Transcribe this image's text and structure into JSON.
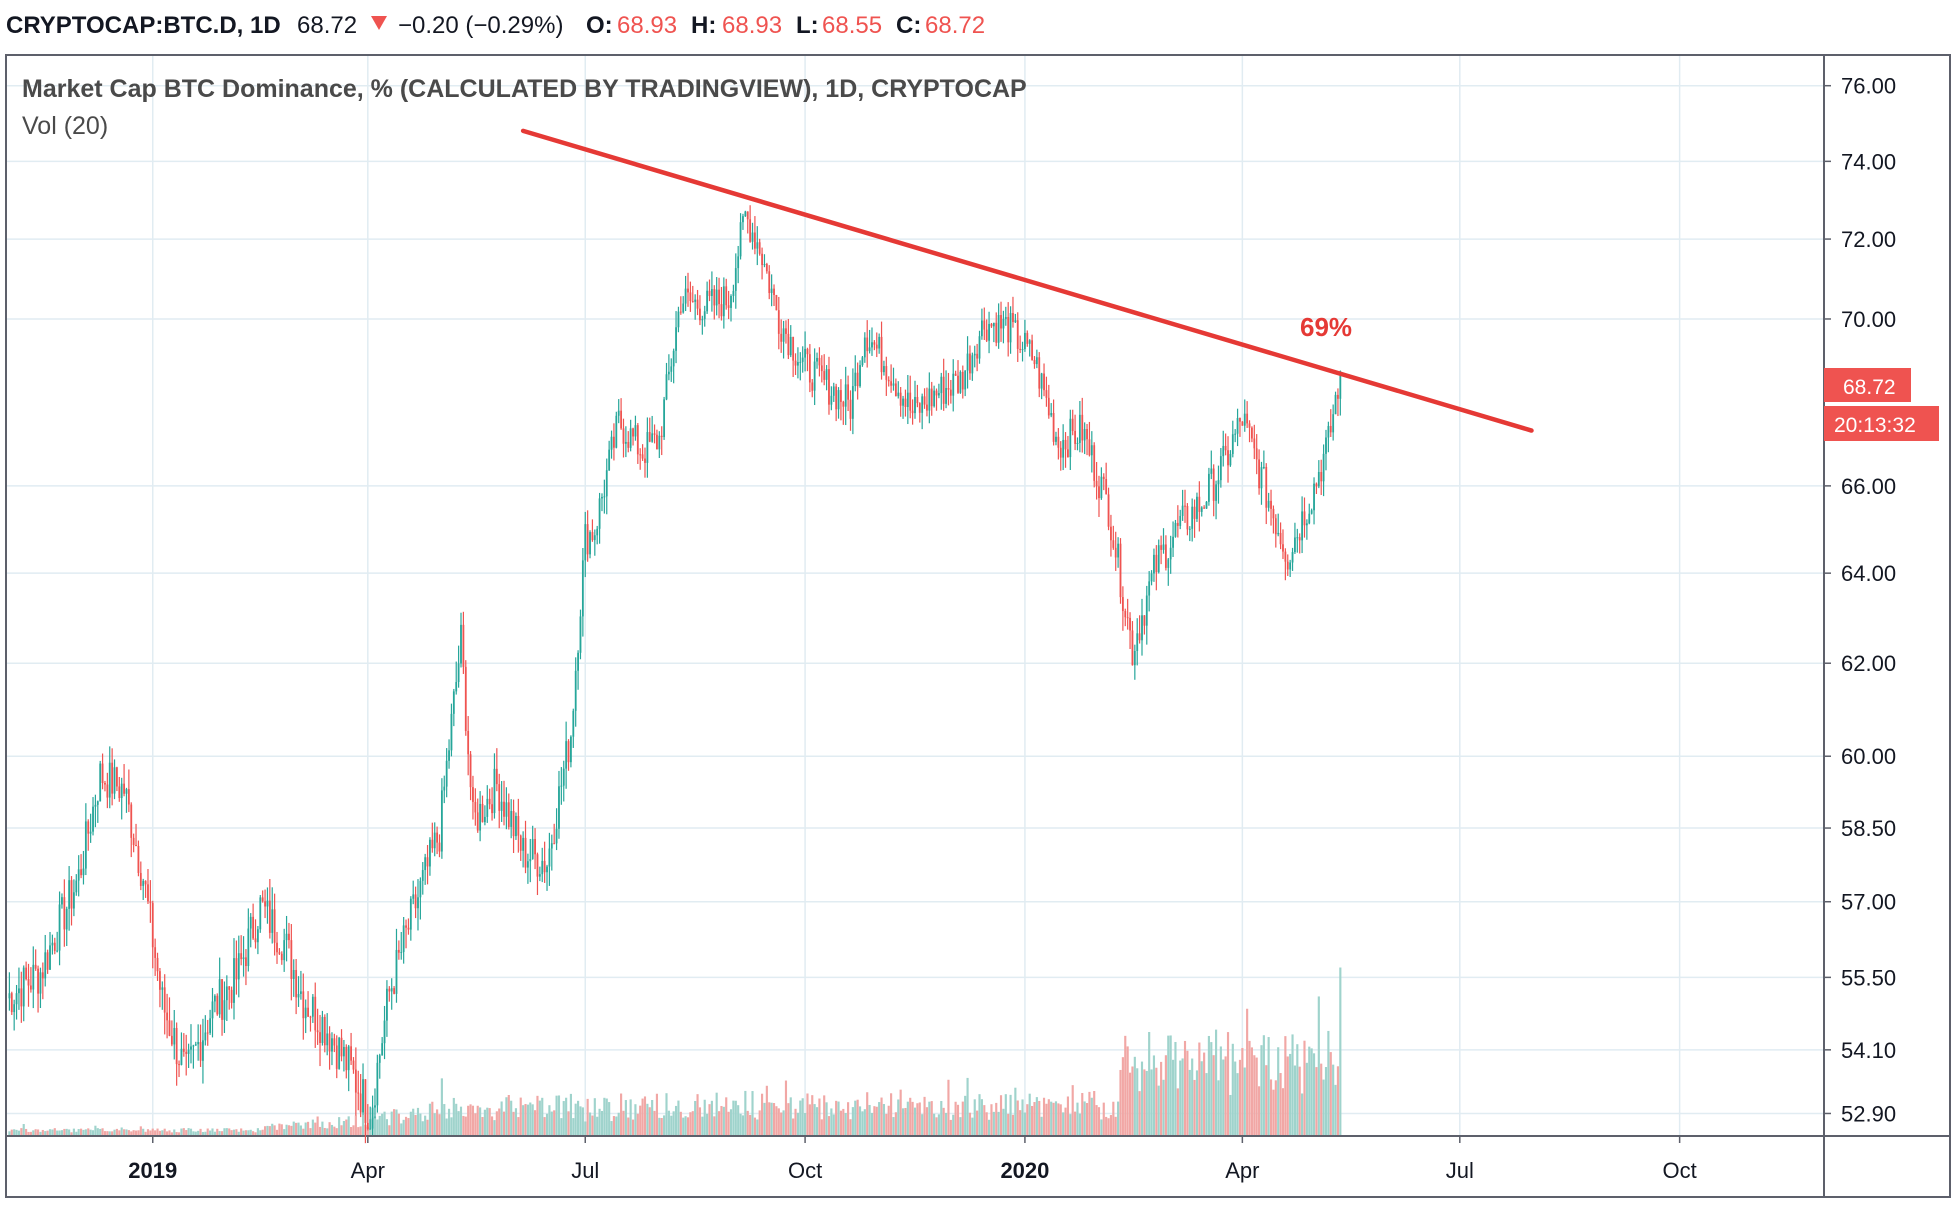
{
  "header": {
    "symbol": "CRYPTOCAP:BTC.D, 1D",
    "last": "68.72",
    "change": "−0.20 (−0.29%)",
    "o_label": "O:",
    "o_value": "68.93",
    "h_label": "H:",
    "h_value": "68.93",
    "l_label": "L:",
    "l_value": "68.55",
    "c_label": "C:",
    "c_value": "68.72"
  },
  "legend": {
    "title": "Market Cap BTC Dominance, % (CALCULATED BY TRADINGVIEW), 1D, CRYPTOCAP",
    "volume": "Vol (20)"
  },
  "price_badge": "68.72",
  "countdown_badge": "20:13:32",
  "annotation": "69%",
  "colors": {
    "up": "#26a69a",
    "down": "#ef5350",
    "up_vol": "#9fd3cc",
    "down_vol": "#f1a7a5",
    "trendline": "#e53935",
    "grid": "#e1ecf2",
    "border": "#5d606b"
  },
  "chart_data": {
    "type": "candlestick",
    "title": "Market Cap BTC Dominance, % (CALCULATED BY TRADINGVIEW), 1D, CRYPTOCAP",
    "y_scale": "log",
    "ylim": [
      52.5,
      76.8
    ],
    "y_ticks": [
      76.0,
      74.0,
      72.0,
      70.0,
      66.0,
      64.0,
      62.0,
      60.0,
      58.5,
      57.0,
      55.5,
      54.1,
      52.9
    ],
    "y_tick_labels": [
      "76.00",
      "74.00",
      "72.00",
      "70.00",
      "66.00",
      "64.00",
      "62.00",
      "60.00",
      "58.50",
      "57.00",
      "55.50",
      "54.10",
      "52.90"
    ],
    "x_range": [
      "2018-11-01",
      "2020-11-30"
    ],
    "x_ticks": [
      {
        "date": "2019-01-01",
        "label": "2019",
        "bold": true
      },
      {
        "date": "2019-04-01",
        "label": "Apr"
      },
      {
        "date": "2019-07-01",
        "label": "Jul"
      },
      {
        "date": "2019-10-01",
        "label": "Oct"
      },
      {
        "date": "2020-01-01",
        "label": "2020",
        "bold": true
      },
      {
        "date": "2020-04-01",
        "label": "Apr"
      },
      {
        "date": "2020-07-01",
        "label": "Jul"
      },
      {
        "date": "2020-10-01",
        "label": "Oct"
      }
    ],
    "series": [
      {
        "name": "BTC.D close",
        "points": [
          [
            "2018-11-01",
            55.1
          ],
          [
            "2018-11-15",
            55.6
          ],
          [
            "2018-12-01",
            57.5
          ],
          [
            "2018-12-10",
            59.6
          ],
          [
            "2018-12-20",
            59.3
          ],
          [
            "2018-12-28",
            57.5
          ],
          [
            "2019-01-05",
            55.0
          ],
          [
            "2019-01-15",
            53.6
          ],
          [
            "2019-01-25",
            54.8
          ],
          [
            "2019-02-05",
            55.5
          ],
          [
            "2019-02-15",
            56.9
          ],
          [
            "2019-02-25",
            56.2
          ],
          [
            "2019-03-05",
            55.1
          ],
          [
            "2019-03-15",
            54.5
          ],
          [
            "2019-03-25",
            53.7
          ],
          [
            "2019-04-02",
            52.9
          ],
          [
            "2019-04-10",
            55.2
          ],
          [
            "2019-04-20",
            56.8
          ],
          [
            "2019-05-01",
            58.4
          ],
          [
            "2019-05-10",
            62.5
          ],
          [
            "2019-05-15",
            58.6
          ],
          [
            "2019-05-25",
            59.4
          ],
          [
            "2019-06-05",
            58.0
          ],
          [
            "2019-06-15",
            57.8
          ],
          [
            "2019-06-25",
            60.5
          ],
          [
            "2019-07-01",
            64.8
          ],
          [
            "2019-07-05",
            65.0
          ],
          [
            "2019-07-15",
            67.5
          ],
          [
            "2019-07-25",
            66.8
          ],
          [
            "2019-08-01",
            67.1
          ],
          [
            "2019-08-10",
            70.5
          ],
          [
            "2019-08-20",
            70.3
          ],
          [
            "2019-08-30",
            70.5
          ],
          [
            "2019-09-06",
            72.6
          ],
          [
            "2019-09-12",
            71.8
          ],
          [
            "2019-09-20",
            70.0
          ],
          [
            "2019-09-30",
            68.9
          ],
          [
            "2019-10-10",
            68.4
          ],
          [
            "2019-10-20",
            67.9
          ],
          [
            "2019-10-26",
            69.7
          ],
          [
            "2019-11-05",
            68.8
          ],
          [
            "2019-11-15",
            67.7
          ],
          [
            "2019-11-25",
            68.2
          ],
          [
            "2019-12-05",
            68.5
          ],
          [
            "2019-12-15",
            69.9
          ],
          [
            "2019-12-25",
            69.8
          ],
          [
            "2020-01-05",
            69.0
          ],
          [
            "2020-01-15",
            67.0
          ],
          [
            "2020-01-25",
            67.3
          ],
          [
            "2020-02-05",
            65.5
          ],
          [
            "2020-02-15",
            62.3
          ],
          [
            "2020-02-25",
            64.2
          ],
          [
            "2020-03-05",
            65.0
          ],
          [
            "2020-03-15",
            65.6
          ],
          [
            "2020-03-25",
            66.6
          ],
          [
            "2020-04-01",
            67.6
          ],
          [
            "2020-04-10",
            66.0
          ],
          [
            "2020-04-20",
            64.4
          ],
          [
            "2020-04-30",
            65.8
          ],
          [
            "2020-05-07",
            67.0
          ],
          [
            "2020-05-12",
            68.72
          ]
        ]
      }
    ],
    "trendline": {
      "from": [
        "2019-06-05",
        74.8
      ],
      "to": [
        "2020-07-31",
        67.3
      ],
      "label": "69%"
    }
  }
}
